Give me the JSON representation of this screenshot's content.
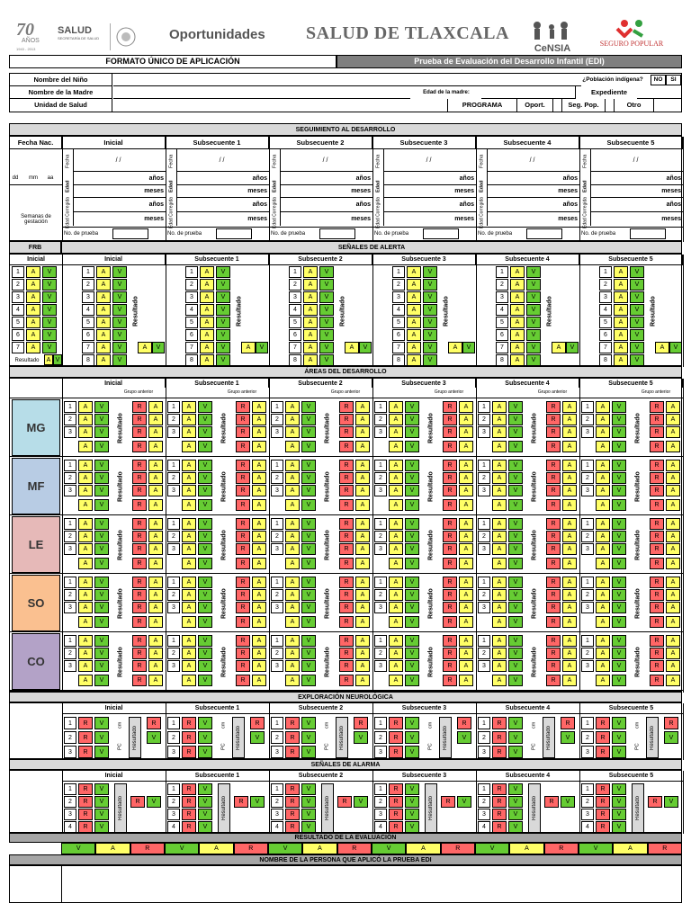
{
  "header": {
    "anios_number": "70",
    "anios_text": "AÑOS",
    "anios_years": "1943 - 2013",
    "salud": "SALUD",
    "salud_sub": "SECRETARÍA DE SALUD",
    "oportunidades": "Oportunidades",
    "salud_tlaxcala": "SALUD DE TLAXCALA",
    "censia": "CeNSIA",
    "seguro_popular": "SEGURO POPULAR"
  },
  "title_bar": {
    "left": "FORMATO ÚNICO DE APLICACIÓN",
    "right": "Prueba de Evaluación del Desarrollo Infantil  (EDI)"
  },
  "patient": {
    "nombre_nino": "Nombre del Niño",
    "nombre_madre": "Nombre de la Madre",
    "unidad_salud": "Unidad de Salud",
    "poblacion_indigena": "¿Población indígena?",
    "no": "NO",
    "si": "SI",
    "edad_madre": "Edad de la madre:",
    "expediente": "Expediente",
    "programa": "PROGRAMA",
    "oport": "Oport.",
    "seg_pop": "Seg. Pop.",
    "otro": "Otro"
  },
  "seguimiento": {
    "title": "SEGUIMIENTO AL DESARROLLO",
    "fecha_nac": "Fecha Nac.",
    "dd": "dd",
    "mm": "mm",
    "aa": "aa",
    "semanas": "Semanas de gestación",
    "fecha": "Fecha",
    "edad": "Edad",
    "edad_corregida": "Edad Corregida",
    "slash": "/          /",
    "anios": "años",
    "meses": "meses",
    "no_prueba": "No. de prueba"
  },
  "columns": [
    "Inicial",
    "Subsecuente 1",
    "Subsecuente 2",
    "Subsecuente 3",
    "Subsecuente 4",
    "Subsecuente 5"
  ],
  "senales_alerta": {
    "frb": "FRB",
    "title": "SEÑALES DE ALERTA",
    "inicial": "Inicial",
    "resultado": "Resultado",
    "rows": [
      "1",
      "2",
      "3",
      "4",
      "5",
      "6",
      "7",
      "8"
    ],
    "a": "A",
    "v": "V"
  },
  "areas": {
    "title": "ÁREAS DEL DESARROLLO",
    "grupo_anterior": "Grupo anterior",
    "resultado": "Resultado",
    "names": [
      "MG",
      "MF",
      "LE",
      "SO",
      "CO"
    ],
    "colors": [
      "#b7dde8",
      "#b8cce4",
      "#e6b9b8",
      "#fac090",
      "#b3a2c7"
    ],
    "rows": [
      "1",
      "2",
      "3"
    ],
    "r": "R",
    "a": "A",
    "v": "V"
  },
  "neuro": {
    "title": "EXPLORACIÓN NEUROLÓGICA",
    "rows": [
      "1",
      "2",
      "3"
    ],
    "cm": "cm",
    "pc": "PC",
    "resultado": "Resultado",
    "r": "R",
    "v": "V"
  },
  "alarma": {
    "title": "SEÑALES DE ALARMA",
    "rows": [
      "1",
      "2",
      "3",
      "4"
    ],
    "resultado": "Resultado",
    "r": "R",
    "v": "V"
  },
  "resultado_eval": {
    "title": "RESULTADO DE LA EVALUACIÓN",
    "cells": [
      "V",
      "A",
      "R",
      "V",
      "A",
      "R",
      "V",
      "A",
      "R",
      "V",
      "A",
      "R",
      "V",
      "A",
      "R",
      "V",
      "A",
      "R"
    ]
  },
  "persona": {
    "title": "NOMBRE DE LA PERSONA QUE APLICÓ LA PRUEBA EDI"
  }
}
